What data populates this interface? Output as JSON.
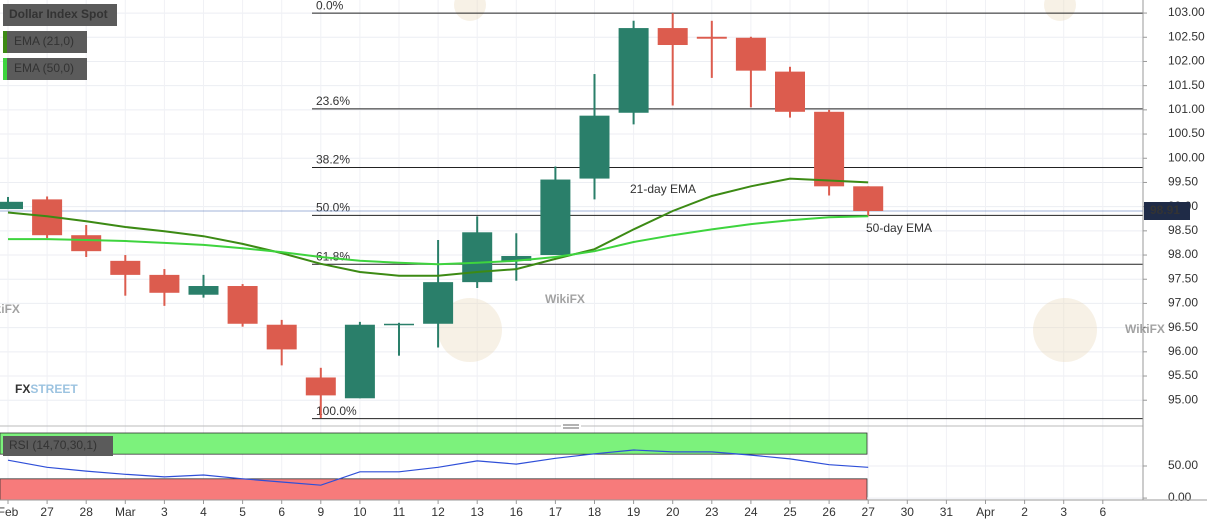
{
  "chart_data": {
    "type": "candlestick",
    "title": "Dollar Index Spot",
    "categories": [
      "Feb",
      "27",
      "28",
      "Mar",
      "3",
      "4",
      "5",
      "6",
      "9",
      "10",
      "11",
      "12",
      "13",
      "16",
      "17",
      "18",
      "19",
      "20",
      "23",
      "24",
      "25",
      "26",
      "27",
      "30",
      "31",
      "Apr",
      "2",
      "3",
      "6"
    ],
    "open": [
      98.95,
      99.15,
      98.41,
      97.88,
      97.59,
      97.18,
      97.36,
      96.56,
      95.47,
      95.04,
      96.56,
      96.58,
      97.44,
      97.88,
      98.0,
      99.58,
      100.94,
      102.69,
      102.51,
      102.49,
      101.79,
      100.96,
      99.42,
      null,
      null,
      null,
      null,
      null,
      null
    ],
    "high": [
      99.2,
      99.21,
      98.62,
      98.0,
      97.71,
      97.59,
      97.4,
      96.66,
      95.67,
      96.62,
      96.6,
      98.31,
      98.8,
      98.45,
      99.83,
      101.74,
      102.84,
      103.0,
      102.84,
      102.51,
      101.89,
      101.0,
      99.42,
      null,
      null,
      null,
      null,
      null,
      null
    ],
    "low": [
      98.95,
      98.35,
      97.96,
      97.16,
      96.95,
      97.12,
      96.52,
      95.72,
      94.63,
      95.04,
      95.92,
      96.09,
      97.32,
      97.47,
      98.0,
      99.15,
      100.7,
      101.09,
      101.66,
      101.05,
      100.84,
      99.23,
      98.8,
      null,
      null,
      null,
      null,
      null,
      null
    ],
    "close": [
      99.1,
      98.41,
      98.08,
      97.59,
      97.22,
      97.36,
      96.58,
      96.05,
      95.1,
      96.56,
      96.58,
      97.44,
      98.47,
      97.98,
      99.56,
      100.88,
      102.69,
      102.34,
      102.47,
      101.81,
      100.96,
      99.42,
      98.91,
      null,
      null,
      null,
      null,
      null,
      null
    ],
    "up_color": "#2a7f6a",
    "down_color": "#dc5c4e",
    "ylim": [
      94.55,
      103.27
    ],
    "yticks": [
      {
        "value": 95,
        "label": "95.00"
      },
      {
        "value": 95.5,
        "label": "95.50"
      },
      {
        "value": 96,
        "label": "96.00"
      },
      {
        "value": 96.5,
        "label": "96.50"
      },
      {
        "value": 97,
        "label": "97.00"
      },
      {
        "value": 97.5,
        "label": "97.50"
      },
      {
        "value": 98,
        "label": "98.00"
      },
      {
        "value": 98.5,
        "label": "98.50"
      },
      {
        "value": 99,
        "label": "99.00"
      },
      {
        "value": 99.5,
        "label": "99.50"
      },
      {
        "value": 100,
        "label": "100.00"
      },
      {
        "value": 100.5,
        "label": "100.50"
      },
      {
        "value": 101,
        "label": "101.00"
      },
      {
        "value": 101.5,
        "label": "101.50"
      },
      {
        "value": 102,
        "label": "102.00"
      },
      {
        "value": 102.5,
        "label": "102.50"
      },
      {
        "value": 103,
        "label": "103.00"
      }
    ],
    "grid": true,
    "series": [
      {
        "name": "EMA (21,0)",
        "color": "#3c8a14",
        "values": [
          98.88,
          98.8,
          98.7,
          98.58,
          98.49,
          98.39,
          98.23,
          98.04,
          97.82,
          97.65,
          97.57,
          97.57,
          97.65,
          97.71,
          97.92,
          98.12,
          98.53,
          98.91,
          99.22,
          99.42,
          99.58,
          99.54,
          99.5,
          null,
          null,
          null,
          null,
          null,
          null
        ]
      },
      {
        "name": "EMA (50,0)",
        "color": "#3ed43e",
        "values": [
          98.33,
          98.33,
          98.31,
          98.29,
          98.25,
          98.21,
          98.14,
          98.06,
          97.96,
          97.88,
          97.84,
          97.81,
          97.84,
          97.88,
          97.96,
          98.08,
          98.27,
          98.41,
          98.53,
          98.64,
          98.72,
          98.78,
          98.8,
          null,
          null,
          null,
          null,
          null,
          null
        ]
      }
    ],
    "annotations": [
      "21-day EMA",
      "50-day EMA"
    ],
    "fib_levels": [
      {
        "label": "0.0%",
        "value": 103.0
      },
      {
        "label": "23.6%",
        "value": 101.02
      },
      {
        "label": "38.2%",
        "value": 99.81
      },
      {
        "label": "50.0%",
        "value": 98.82
      },
      {
        "label": "61.8%",
        "value": 97.81
      },
      {
        "label": "100.0%",
        "value": 94.62
      }
    ],
    "last_price": 98.91,
    "watermark": "WikiFX",
    "brand": {
      "fx": "FX",
      "street": "STREET"
    },
    "rsi": {
      "name": "RSI (14,70,30,1)",
      "color": "#2f4fd8",
      "values": [
        59,
        48,
        42,
        37,
        33,
        36,
        30,
        25,
        20,
        41,
        41,
        48,
        58,
        53,
        62,
        69,
        75,
        72,
        72,
        67,
        61,
        52,
        48,
        null,
        null,
        null,
        null,
        null,
        null
      ],
      "ylim": [
        -3,
        103
      ],
      "yticks": [
        {
          "value": 50,
          "label": "50.00"
        },
        {
          "value": 0,
          "label": "0.00"
        }
      ],
      "levels": [
        30,
        70
      ]
    }
  }
}
